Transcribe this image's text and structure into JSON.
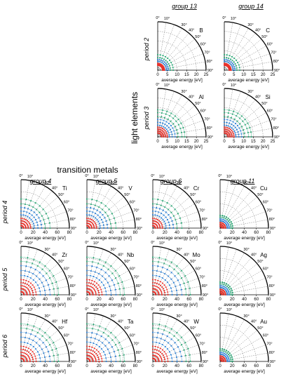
{
  "figure": {
    "section_light": "light elements",
    "section_transition": "transition metals"
  },
  "angle_ticks": [
    "0°",
    "10°",
    "30°",
    "40°",
    "50°",
    "60°",
    "70°",
    "80°",
    "90°"
  ],
  "axis_label": "average energy [eV]",
  "series_colors": {
    "inner": "#e8312a",
    "middle": "#2a7fd4",
    "outer": "#2aa876"
  },
  "light_group_labels": [
    "group 13",
    "group 14"
  ],
  "light_period_labels": [
    "period 2",
    "period 3"
  ],
  "tm_group_labels": [
    "group 4",
    "group 5",
    "group 6",
    "group 11"
  ],
  "tm_period_labels": [
    "period 4",
    "period 5",
    "period 6"
  ],
  "chart_data": [
    {
      "type": "polar-scatter",
      "element": "B",
      "energy_max": 25,
      "ticks": [
        "0",
        "5",
        "10",
        "15",
        "20",
        "25"
      ],
      "xlabel": "average energy [eV]",
      "series": [
        {
          "color": "red",
          "r": [
            2.5,
            3.0,
            3.5
          ]
        },
        {
          "color": "blue",
          "r": [
            4.5,
            5.5
          ]
        },
        {
          "color": "green",
          "r": [
            6.5,
            8.0
          ]
        }
      ]
    },
    {
      "type": "polar-scatter",
      "element": "C",
      "energy_max": 25,
      "ticks": [
        "0",
        "5",
        "10",
        "15",
        "20",
        "25"
      ],
      "xlabel": "average energy [eV]",
      "series": [
        {
          "color": "red",
          "r": [
            2.5,
            3.0,
            3.5
          ]
        },
        {
          "color": "blue",
          "r": [
            4.5,
            5.5
          ]
        },
        {
          "color": "green",
          "r": [
            6.5,
            8.0
          ]
        }
      ]
    },
    {
      "type": "polar-scatter",
      "element": "Al",
      "energy_max": 25,
      "ticks": [
        "0",
        "5",
        "10",
        "15",
        "20",
        "25"
      ],
      "xlabel": "average energy [eV]",
      "series": [
        {
          "color": "red",
          "r": [
            2.0,
            3.0,
            4.0,
            5.0
          ]
        },
        {
          "color": "blue",
          "r": [
            6.0,
            7.5,
            9.0
          ]
        },
        {
          "color": "green",
          "r": [
            10.5,
            12.5,
            14.0
          ]
        }
      ]
    },
    {
      "type": "polar-scatter",
      "element": "Si",
      "energy_max": 25,
      "ticks": [
        "0",
        "5",
        "10",
        "15",
        "20",
        "25"
      ],
      "xlabel": "average energy [eV]",
      "series": [
        {
          "color": "red",
          "r": [
            2.0,
            3.0,
            4.0,
            5.0
          ]
        },
        {
          "color": "blue",
          "r": [
            6.0,
            7.5,
            9.0
          ]
        },
        {
          "color": "green",
          "r": [
            10.5,
            12.5,
            14.0
          ]
        }
      ]
    },
    {
      "type": "polar-scatter",
      "element": "Ti",
      "energy_max": 80,
      "ticks": [
        "0",
        "20",
        "40",
        "60",
        "80"
      ],
      "xlabel": "average energy [eV]",
      "series": [
        {
          "color": "red",
          "r": [
            4,
            8,
            12,
            16
          ]
        },
        {
          "color": "blue",
          "r": [
            22,
            28,
            34
          ]
        },
        {
          "color": "green",
          "r": [
            40,
            48
          ]
        }
      ]
    },
    {
      "type": "polar-scatter",
      "element": "V",
      "energy_max": 80,
      "ticks": [
        "0",
        "20",
        "40",
        "60",
        "80"
      ],
      "xlabel": "average energy [eV]",
      "series": [
        {
          "color": "red",
          "r": [
            4,
            8,
            12,
            16
          ]
        },
        {
          "color": "blue",
          "r": [
            22,
            28,
            34
          ]
        },
        {
          "color": "green",
          "r": [
            40,
            48
          ]
        }
      ]
    },
    {
      "type": "polar-scatter",
      "element": "Cr",
      "energy_max": 80,
      "ticks": [
        "0",
        "20",
        "40",
        "60",
        "80"
      ],
      "xlabel": "average energy [eV]",
      "series": [
        {
          "color": "red",
          "r": [
            4,
            8,
            12,
            16
          ]
        },
        {
          "color": "blue",
          "r": [
            22,
            28,
            34
          ]
        },
        {
          "color": "green",
          "r": [
            40,
            48
          ]
        }
      ]
    },
    {
      "type": "polar-scatter",
      "element": "Cu",
      "energy_max": 80,
      "ticks": [
        "0",
        "20",
        "40",
        "60",
        "80"
      ],
      "xlabel": "average energy [eV]",
      "series": [
        {
          "color": "red",
          "r": [
            3,
            6,
            9
          ]
        },
        {
          "color": "blue",
          "r": [
            12,
            15
          ]
        },
        {
          "color": "green",
          "r": [
            18,
            21
          ]
        }
      ]
    },
    {
      "type": "polar-scatter",
      "element": "Zr",
      "energy_max": 80,
      "ticks": [
        "0",
        "20",
        "40",
        "60",
        "80"
      ],
      "xlabel": "average energy [eV]",
      "series": [
        {
          "color": "red",
          "r": [
            5,
            10,
            15,
            20,
            25
          ]
        },
        {
          "color": "blue",
          "r": [
            32,
            40,
            48
          ]
        },
        {
          "color": "green",
          "r": [
            55,
            62
          ]
        }
      ]
    },
    {
      "type": "polar-scatter",
      "element": "Nb",
      "energy_max": 80,
      "ticks": [
        "0",
        "20",
        "40",
        "60",
        "80"
      ],
      "xlabel": "average energy [eV]",
      "series": [
        {
          "color": "red",
          "r": [
            5,
            10,
            15,
            20,
            25
          ]
        },
        {
          "color": "blue",
          "r": [
            32,
            40,
            48
          ]
        },
        {
          "color": "green",
          "r": [
            55,
            62
          ]
        }
      ]
    },
    {
      "type": "polar-scatter",
      "element": "Mo",
      "energy_max": 80,
      "ticks": [
        "0",
        "20",
        "40",
        "60",
        "80"
      ],
      "xlabel": "average energy [eV]",
      "series": [
        {
          "color": "red",
          "r": [
            5,
            10,
            15,
            20,
            25
          ]
        },
        {
          "color": "blue",
          "r": [
            32,
            40,
            48
          ]
        },
        {
          "color": "green",
          "r": [
            55,
            62
          ]
        }
      ]
    },
    {
      "type": "polar-scatter",
      "element": "Ag",
      "energy_max": 80,
      "ticks": [
        "0",
        "20",
        "40",
        "60",
        "80"
      ],
      "xlabel": "average energy [eV]",
      "series": [
        {
          "color": "red",
          "r": [
            3,
            6,
            9
          ]
        },
        {
          "color": "blue",
          "r": [
            12,
            15
          ]
        },
        {
          "color": "green",
          "r": [
            18,
            21
          ]
        }
      ]
    },
    {
      "type": "polar-scatter",
      "element": "Hf",
      "energy_max": 80,
      "ticks": [
        "0",
        "20",
        "40",
        "60",
        "80"
      ],
      "xlabel": "average energy [eV]",
      "series": [
        {
          "color": "red",
          "r": [
            5,
            10,
            15,
            20,
            25
          ]
        },
        {
          "color": "blue",
          "r": [
            32,
            40,
            48
          ]
        },
        {
          "color": "green",
          "r": [
            55,
            62
          ]
        }
      ]
    },
    {
      "type": "polar-scatter",
      "element": "Ta",
      "energy_max": 80,
      "ticks": [
        "0",
        "20",
        "40",
        "60",
        "80"
      ],
      "xlabel": "average energy [eV]",
      "series": [
        {
          "color": "red",
          "r": [
            5,
            10,
            15,
            20,
            25
          ]
        },
        {
          "color": "blue",
          "r": [
            32,
            40,
            48
          ]
        },
        {
          "color": "green",
          "r": [
            55,
            62
          ]
        }
      ]
    },
    {
      "type": "polar-scatter",
      "element": "W",
      "energy_max": 80,
      "ticks": [
        "0",
        "20",
        "40",
        "60",
        "80"
      ],
      "xlabel": "average energy [eV]",
      "series": [
        {
          "color": "red",
          "r": [
            5,
            10,
            15,
            20,
            25
          ]
        },
        {
          "color": "blue",
          "r": [
            32,
            40,
            48
          ]
        },
        {
          "color": "green",
          "r": [
            55,
            62
          ]
        }
      ]
    },
    {
      "type": "polar-scatter",
      "element": "Au",
      "energy_max": 80,
      "ticks": [
        "0",
        "20",
        "40",
        "60",
        "80"
      ],
      "xlabel": "average energy [eV]",
      "series": [
        {
          "color": "red",
          "r": [
            3,
            6,
            9
          ]
        },
        {
          "color": "blue",
          "r": [
            12,
            15
          ]
        },
        {
          "color": "green",
          "r": [
            18,
            21
          ]
        }
      ]
    }
  ]
}
